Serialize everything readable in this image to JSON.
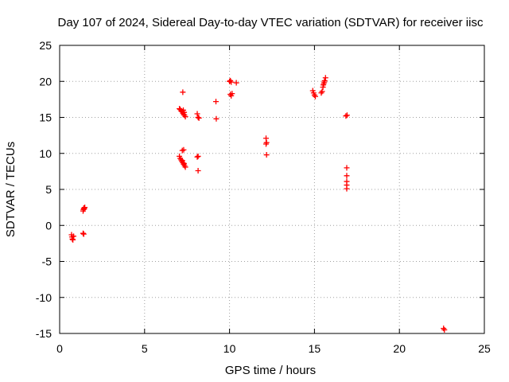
{
  "chart_data": {
    "type": "scatter",
    "title": "Day 107 of 2024, Sidereal Day-to-day VTEC variation (SDTVAR) for receiver iisc",
    "xlabel": "GPS time / hours",
    "ylabel": "SDTVAR / TECUs",
    "xlim": [
      0,
      25
    ],
    "ylim": [
      -15,
      25
    ],
    "xticks": [
      0,
      5,
      10,
      15,
      20,
      25
    ],
    "yticks": [
      -15,
      -10,
      -5,
      0,
      5,
      10,
      15,
      20,
      25
    ],
    "grid": true,
    "marker": "plus",
    "color": "#ff0000",
    "series": [
      {
        "name": "SDTVAR",
        "points": [
          [
            0.7,
            -1.3
          ],
          [
            0.72,
            -1.6
          ],
          [
            0.75,
            -1.9
          ],
          [
            0.78,
            -2.0
          ],
          [
            0.82,
            -1.5
          ],
          [
            1.38,
            2.0
          ],
          [
            1.4,
            2.2
          ],
          [
            1.42,
            2.4
          ],
          [
            1.45,
            2.3
          ],
          [
            1.48,
            2.5
          ],
          [
            1.38,
            -1.1
          ],
          [
            1.42,
            -1.2
          ],
          [
            7.05,
            16.2
          ],
          [
            7.1,
            16.1
          ],
          [
            7.15,
            15.9
          ],
          [
            7.2,
            15.8
          ],
          [
            7.25,
            15.6
          ],
          [
            7.3,
            15.4
          ],
          [
            7.35,
            15.3
          ],
          [
            7.4,
            15.1
          ],
          [
            7.28,
            16.0
          ],
          [
            7.33,
            15.7
          ],
          [
            7.25,
            18.5
          ],
          [
            7.05,
            9.6
          ],
          [
            7.1,
            9.3
          ],
          [
            7.15,
            9.1
          ],
          [
            7.2,
            8.9
          ],
          [
            7.25,
            8.7
          ],
          [
            7.3,
            8.5
          ],
          [
            7.35,
            8.3
          ],
          [
            7.4,
            8.1
          ],
          [
            7.22,
            9.0
          ],
          [
            7.32,
            8.6
          ],
          [
            7.22,
            10.4
          ],
          [
            7.3,
            10.5
          ],
          [
            8.1,
            15.5
          ],
          [
            8.15,
            15.0
          ],
          [
            8.2,
            14.9
          ],
          [
            8.1,
            9.5
          ],
          [
            8.15,
            9.6
          ],
          [
            8.15,
            7.6
          ],
          [
            9.2,
            17.2
          ],
          [
            9.22,
            14.8
          ],
          [
            10.0,
            20.0
          ],
          [
            10.05,
            20.1
          ],
          [
            10.1,
            19.9
          ],
          [
            10.4,
            19.8
          ],
          [
            10.05,
            18.2
          ],
          [
            10.1,
            18.0
          ],
          [
            10.15,
            18.3
          ],
          [
            12.15,
            12.1
          ],
          [
            12.15,
            11.3
          ],
          [
            12.18,
            11.5
          ],
          [
            12.18,
            9.8
          ],
          [
            14.9,
            18.7
          ],
          [
            14.95,
            18.4
          ],
          [
            15.0,
            18.1
          ],
          [
            15.05,
            17.9
          ],
          [
            15.4,
            18.4
          ],
          [
            15.45,
            18.6
          ],
          [
            15.5,
            19.2
          ],
          [
            15.55,
            19.7
          ],
          [
            15.6,
            20.1
          ],
          [
            15.65,
            20.5
          ],
          [
            15.52,
            19.5
          ],
          [
            15.58,
            19.9
          ],
          [
            16.85,
            15.2
          ],
          [
            16.92,
            15.3
          ],
          [
            16.9,
            8.0
          ],
          [
            16.9,
            6.9
          ],
          [
            16.9,
            6.1
          ],
          [
            16.9,
            5.6
          ],
          [
            16.9,
            5.1
          ],
          [
            22.6,
            -14.3
          ],
          [
            22.65,
            -14.5
          ]
        ]
      }
    ]
  }
}
